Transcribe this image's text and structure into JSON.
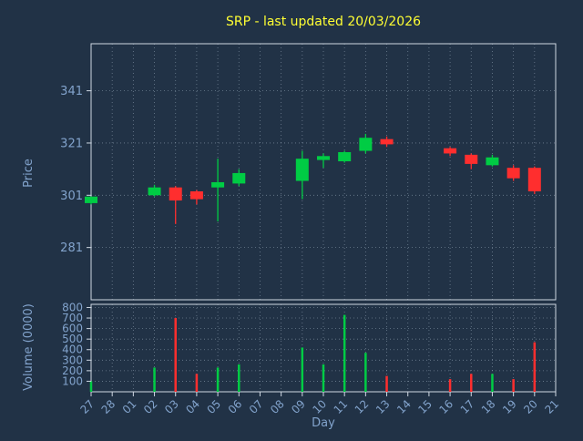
{
  "title": "SRP - last updated 20/03/2026",
  "colors": {
    "background": "#213246",
    "plot_border": "#cfd8e3",
    "grid": "#aebfd0",
    "label": "#82a3cc",
    "title": "#ffff33",
    "up": "#00cc44",
    "down": "#ff2e2e"
  },
  "chart_data": {
    "type": "candlestick",
    "title": "SRP - last updated 20/03/2026",
    "xlabel": "Day",
    "price_ylabel": "Price",
    "volume_ylabel": "Volume (0000)",
    "price_ticks": [
      281,
      301,
      321,
      341
    ],
    "price_range": [
      261,
      359
    ],
    "volume_ticks": [
      100,
      200,
      300,
      400,
      500,
      600,
      700,
      800
    ],
    "volume_range": [
      0,
      830
    ],
    "grid": true,
    "legend": false,
    "categories": [
      "27",
      "28",
      "01",
      "02",
      "03",
      "04",
      "05",
      "06",
      "07",
      "08",
      "09",
      "10",
      "11",
      "12",
      "13",
      "14",
      "15",
      "16",
      "17",
      "18",
      "19",
      "20",
      "21"
    ],
    "candles": [
      {
        "day": "27",
        "open": 298,
        "high": 300.5,
        "low": 297.5,
        "close": 300.5,
        "volume": 100
      },
      {
        "day": "02",
        "open": 301,
        "high": 305,
        "low": 300.5,
        "close": 304,
        "volume": 230
      },
      {
        "day": "03",
        "open": 304,
        "high": 304.5,
        "low": 290,
        "close": 299,
        "volume": 700
      },
      {
        "day": "04",
        "open": 302.5,
        "high": 303,
        "low": 297.5,
        "close": 299.5,
        "volume": 170
      },
      {
        "day": "05",
        "open": 304,
        "high": 315,
        "low": 291,
        "close": 306,
        "volume": 230
      },
      {
        "day": "06",
        "open": 305.5,
        "high": 311,
        "low": 304.5,
        "close": 309.5,
        "volume": 260
      },
      {
        "day": "09",
        "open": 306.5,
        "high": 318,
        "low": 299.5,
        "close": 315,
        "volume": 420
      },
      {
        "day": "10",
        "open": 314.5,
        "high": 317,
        "low": 311.5,
        "close": 316,
        "volume": 260
      },
      {
        "day": "11",
        "open": 314,
        "high": 318,
        "low": 313.5,
        "close": 317.5,
        "volume": 730
      },
      {
        "day": "12",
        "open": 318,
        "high": 324.5,
        "low": 317,
        "close": 323,
        "volume": 370
      },
      {
        "day": "13",
        "open": 322.5,
        "high": 323.5,
        "low": 319.5,
        "close": 320.5,
        "volume": 150
      },
      {
        "day": "16",
        "open": 319,
        "high": 319.5,
        "low": 316,
        "close": 317,
        "volume": 120
      },
      {
        "day": "17",
        "open": 316.5,
        "high": 317,
        "low": 311,
        "close": 313,
        "volume": 170
      },
      {
        "day": "18",
        "open": 312.5,
        "high": 316.5,
        "low": 312,
        "close": 315.5,
        "volume": 170
      },
      {
        "day": "19",
        "open": 311.5,
        "high": 312.5,
        "low": 306.5,
        "close": 307.5,
        "volume": 120
      },
      {
        "day": "20",
        "open": 311.5,
        "high": 312,
        "low": 301.5,
        "close": 302.5,
        "volume": 470
      }
    ]
  }
}
